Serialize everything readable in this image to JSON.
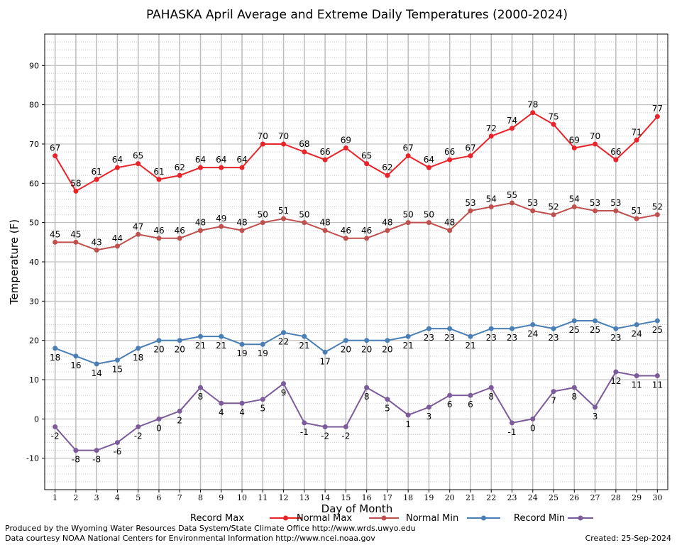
{
  "chart_data": {
    "type": "line",
    "title": "PAHASKA April Average and Extreme Daily Temperatures (2000-2024)",
    "xlabel": "Day of Month",
    "ylabel": "Temperature (F)",
    "x": [
      1,
      2,
      3,
      4,
      5,
      6,
      7,
      8,
      9,
      10,
      11,
      12,
      13,
      14,
      15,
      16,
      17,
      18,
      19,
      20,
      21,
      22,
      23,
      24,
      25,
      26,
      27,
      28,
      29,
      30
    ],
    "xlim": [
      0.5,
      30.5
    ],
    "ylim": [
      -18,
      98
    ],
    "yticks": [
      -10,
      0,
      10,
      20,
      30,
      40,
      50,
      60,
      70,
      80,
      90
    ],
    "grid": true,
    "legend_position": "bottom",
    "series": [
      {
        "name": "Record Max",
        "color": "#e8242a",
        "label_position": "above",
        "values": [
          67,
          58,
          61,
          64,
          65,
          61,
          62,
          64,
          64,
          64,
          70,
          70,
          68,
          66,
          69,
          65,
          62,
          67,
          64,
          66,
          67,
          72,
          74,
          78,
          75,
          69,
          70,
          66,
          71,
          77
        ]
      },
      {
        "name": "Normal Max",
        "color": "#c0504d",
        "label_position": "above",
        "values": [
          45,
          45,
          43,
          44,
          47,
          46,
          46,
          48,
          49,
          48,
          50,
          51,
          50,
          48,
          46,
          46,
          48,
          50,
          50,
          48,
          53,
          54,
          55,
          53,
          52,
          54,
          53,
          53,
          51,
          52
        ]
      },
      {
        "name": "Normal Min",
        "color": "#4a7fb5",
        "label_position": "below",
        "values": [
          18,
          16,
          14,
          15,
          18,
          20,
          20,
          21,
          21,
          19,
          19,
          22,
          21,
          17,
          20,
          20,
          20,
          21,
          23,
          23,
          21,
          23,
          23,
          24,
          23,
          25,
          25,
          23,
          24,
          25
        ]
      },
      {
        "name": "Record Min",
        "color": "#7b5b9a",
        "label_position": "below",
        "values": [
          -2,
          -8,
          -8,
          -6,
          -2,
          0,
          2,
          8,
          4,
          4,
          5,
          9,
          -1,
          -2,
          -2,
          8,
          5,
          1,
          3,
          6,
          6,
          8,
          -1,
          0,
          7,
          8,
          3,
          12,
          11,
          11
        ]
      }
    ]
  },
  "footer": {
    "credit_line_1": "Produced by the Wyoming Water Resources Data System/State Climate Office http://www.wrds.uwyo.edu",
    "credit_line_2": "Data courtesy NOAA National Centers for Environmental Information http://www.ncei.noaa.gov",
    "created": "Created:  25-Sep-2024"
  }
}
